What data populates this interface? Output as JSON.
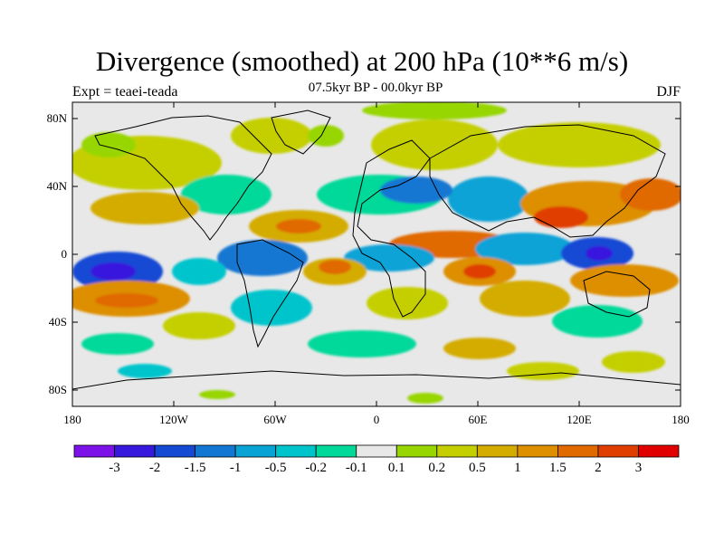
{
  "title": "Divergence (smoothed) at 200 hPa (10**6 m/s)",
  "subtitle": "07.5kyr BP - 00.0kyr BP",
  "left_label": "Expt = teaei-teada",
  "right_label": "DJF",
  "lat_labels": [
    "80N",
    "40N",
    "0",
    "40S",
    "80S"
  ],
  "lon_labels": [
    "180",
    "120W",
    "60W",
    "0",
    "60E",
    "120E",
    "180"
  ],
  "colorbar": {
    "colors": [
      "#7d12e8",
      "#3718dd",
      "#1449d4",
      "#1277d3",
      "#0aa3d6",
      "#00c4cc",
      "#00d99a",
      "#e8e8e8",
      "#97d600",
      "#c5cf00",
      "#d4ac00",
      "#dd8f00",
      "#e06900",
      "#e03e00",
      "#e00000"
    ],
    "labels": [
      "-3",
      "-2",
      "-1.5",
      "-1",
      "-0.5",
      "-0.2",
      "-0.1",
      "0.1",
      "0.2",
      "0.5",
      "1",
      "1.5",
      "2",
      "3"
    ]
  }
}
